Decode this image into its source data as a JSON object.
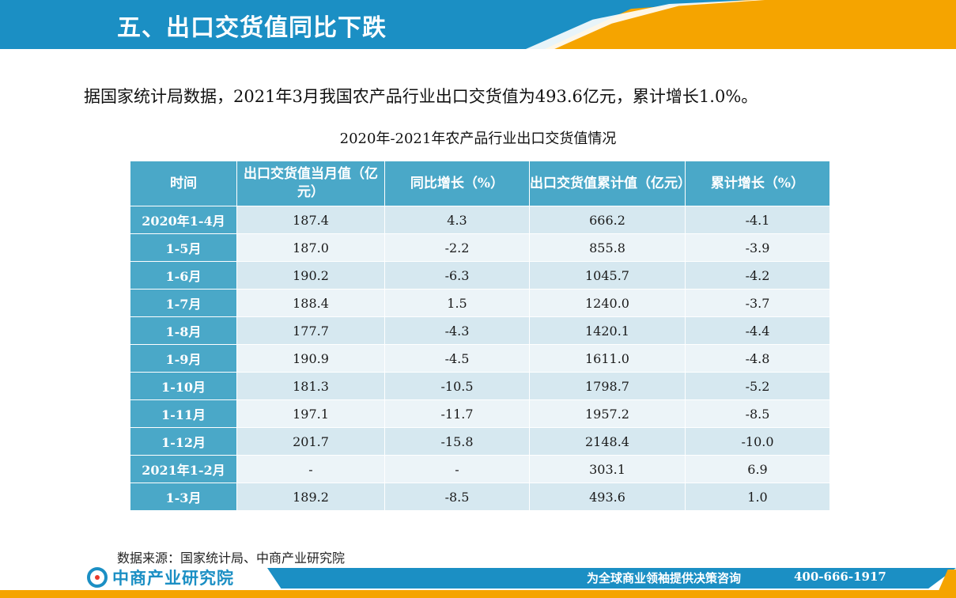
{
  "header": {
    "title": "五、出口交货值同比下跌"
  },
  "intro": {
    "text": "据国家统计局数据，2021年3月我国农产品行业出口交货值为493.6亿元，累计增长1.0%。"
  },
  "table": {
    "title": "2020年-2021年农产品行业出口交货值情况",
    "headers": [
      "时间",
      "出口交货值当月值（亿元）",
      "同比增长（%）",
      "出口交货值累计值（亿元）",
      "累计增长（%）"
    ],
    "rows": [
      [
        "2020年1-4月",
        "187.4",
        "4.3",
        "666.2",
        "-4.1"
      ],
      [
        "1-5月",
        "187.0",
        "-2.2",
        "855.8",
        "-3.9"
      ],
      [
        "1-6月",
        "190.2",
        "-6.3",
        "1045.7",
        "-4.2"
      ],
      [
        "1-7月",
        "188.4",
        "1.5",
        "1240.0",
        "-3.7"
      ],
      [
        "1-8月",
        "177.7",
        "-4.3",
        "1420.1",
        "-4.4"
      ],
      [
        "1-9月",
        "190.9",
        "-4.5",
        "1611.0",
        "-4.8"
      ],
      [
        "1-10月",
        "181.3",
        "-10.5",
        "1798.7",
        "-5.2"
      ],
      [
        "1-11月",
        "197.1",
        "-11.7",
        "1957.2",
        "-8.5"
      ],
      [
        "1-12月",
        "201.7",
        "-15.8",
        "2148.4",
        "-10.0"
      ],
      [
        "2021年1-2月",
        "-",
        "-",
        "303.1",
        "6.9"
      ],
      [
        "1-3月",
        "189.2",
        "-8.5",
        "493.6",
        "1.0"
      ]
    ]
  },
  "source": {
    "text": "数据来源：国家统计局、中商产业研究院"
  },
  "footer": {
    "logo_text": "中商产业研究院",
    "slogan": "为全球商业领袖提供决策咨询",
    "phone": "400-666-1917"
  },
  "colors": {
    "brand_blue": "#1b8fc4",
    "accent_orange": "#f5a400",
    "table_header": "#4aa8c8"
  }
}
